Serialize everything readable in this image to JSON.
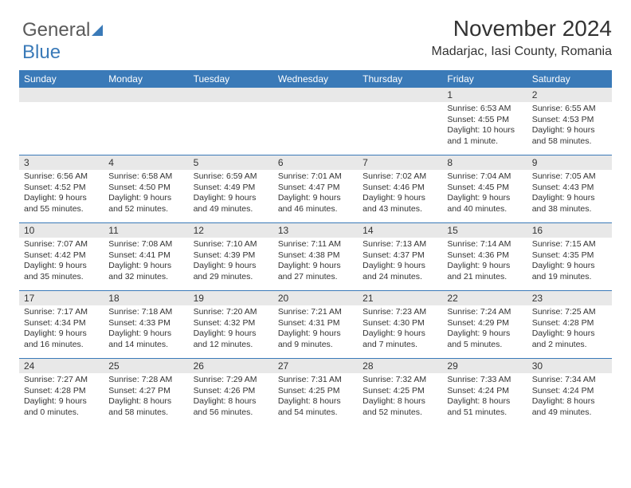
{
  "logo": {
    "text1": "General",
    "text2": "Blue"
  },
  "title": "November 2024",
  "location": "Madarjac, Iasi County, Romania",
  "dayNames": [
    "Sunday",
    "Monday",
    "Tuesday",
    "Wednesday",
    "Thursday",
    "Friday",
    "Saturday"
  ],
  "colors": {
    "headerBg": "#3a7ab8",
    "headerText": "#ffffff",
    "dateBarBg": "#e8e8e8",
    "border": "#3a7ab8",
    "body": "#333333",
    "background": "#ffffff"
  },
  "typography": {
    "titleFontSize": 28,
    "locationFontSize": 16,
    "dayHeaderFontSize": 12,
    "dateFontSize": 12,
    "bodyFontSize": 10.5
  },
  "layout": {
    "columns": 7,
    "rows": 5,
    "cellMinHeight": 84,
    "totalWidth": 744
  },
  "weeks": [
    [
      {
        "date": "",
        "sunrise": "",
        "sunset": "",
        "daylight": ""
      },
      {
        "date": "",
        "sunrise": "",
        "sunset": "",
        "daylight": ""
      },
      {
        "date": "",
        "sunrise": "",
        "sunset": "",
        "daylight": ""
      },
      {
        "date": "",
        "sunrise": "",
        "sunset": "",
        "daylight": ""
      },
      {
        "date": "",
        "sunrise": "",
        "sunset": "",
        "daylight": ""
      },
      {
        "date": "1",
        "sunrise": "Sunrise: 6:53 AM",
        "sunset": "Sunset: 4:55 PM",
        "daylight": "Daylight: 10 hours and 1 minute."
      },
      {
        "date": "2",
        "sunrise": "Sunrise: 6:55 AM",
        "sunset": "Sunset: 4:53 PM",
        "daylight": "Daylight: 9 hours and 58 minutes."
      }
    ],
    [
      {
        "date": "3",
        "sunrise": "Sunrise: 6:56 AM",
        "sunset": "Sunset: 4:52 PM",
        "daylight": "Daylight: 9 hours and 55 minutes."
      },
      {
        "date": "4",
        "sunrise": "Sunrise: 6:58 AM",
        "sunset": "Sunset: 4:50 PM",
        "daylight": "Daylight: 9 hours and 52 minutes."
      },
      {
        "date": "5",
        "sunrise": "Sunrise: 6:59 AM",
        "sunset": "Sunset: 4:49 PM",
        "daylight": "Daylight: 9 hours and 49 minutes."
      },
      {
        "date": "6",
        "sunrise": "Sunrise: 7:01 AM",
        "sunset": "Sunset: 4:47 PM",
        "daylight": "Daylight: 9 hours and 46 minutes."
      },
      {
        "date": "7",
        "sunrise": "Sunrise: 7:02 AM",
        "sunset": "Sunset: 4:46 PM",
        "daylight": "Daylight: 9 hours and 43 minutes."
      },
      {
        "date": "8",
        "sunrise": "Sunrise: 7:04 AM",
        "sunset": "Sunset: 4:45 PM",
        "daylight": "Daylight: 9 hours and 40 minutes."
      },
      {
        "date": "9",
        "sunrise": "Sunrise: 7:05 AM",
        "sunset": "Sunset: 4:43 PM",
        "daylight": "Daylight: 9 hours and 38 minutes."
      }
    ],
    [
      {
        "date": "10",
        "sunrise": "Sunrise: 7:07 AM",
        "sunset": "Sunset: 4:42 PM",
        "daylight": "Daylight: 9 hours and 35 minutes."
      },
      {
        "date": "11",
        "sunrise": "Sunrise: 7:08 AM",
        "sunset": "Sunset: 4:41 PM",
        "daylight": "Daylight: 9 hours and 32 minutes."
      },
      {
        "date": "12",
        "sunrise": "Sunrise: 7:10 AM",
        "sunset": "Sunset: 4:39 PM",
        "daylight": "Daylight: 9 hours and 29 minutes."
      },
      {
        "date": "13",
        "sunrise": "Sunrise: 7:11 AM",
        "sunset": "Sunset: 4:38 PM",
        "daylight": "Daylight: 9 hours and 27 minutes."
      },
      {
        "date": "14",
        "sunrise": "Sunrise: 7:13 AM",
        "sunset": "Sunset: 4:37 PM",
        "daylight": "Daylight: 9 hours and 24 minutes."
      },
      {
        "date": "15",
        "sunrise": "Sunrise: 7:14 AM",
        "sunset": "Sunset: 4:36 PM",
        "daylight": "Daylight: 9 hours and 21 minutes."
      },
      {
        "date": "16",
        "sunrise": "Sunrise: 7:15 AM",
        "sunset": "Sunset: 4:35 PM",
        "daylight": "Daylight: 9 hours and 19 minutes."
      }
    ],
    [
      {
        "date": "17",
        "sunrise": "Sunrise: 7:17 AM",
        "sunset": "Sunset: 4:34 PM",
        "daylight": "Daylight: 9 hours and 16 minutes."
      },
      {
        "date": "18",
        "sunrise": "Sunrise: 7:18 AM",
        "sunset": "Sunset: 4:33 PM",
        "daylight": "Daylight: 9 hours and 14 minutes."
      },
      {
        "date": "19",
        "sunrise": "Sunrise: 7:20 AM",
        "sunset": "Sunset: 4:32 PM",
        "daylight": "Daylight: 9 hours and 12 minutes."
      },
      {
        "date": "20",
        "sunrise": "Sunrise: 7:21 AM",
        "sunset": "Sunset: 4:31 PM",
        "daylight": "Daylight: 9 hours and 9 minutes."
      },
      {
        "date": "21",
        "sunrise": "Sunrise: 7:23 AM",
        "sunset": "Sunset: 4:30 PM",
        "daylight": "Daylight: 9 hours and 7 minutes."
      },
      {
        "date": "22",
        "sunrise": "Sunrise: 7:24 AM",
        "sunset": "Sunset: 4:29 PM",
        "daylight": "Daylight: 9 hours and 5 minutes."
      },
      {
        "date": "23",
        "sunrise": "Sunrise: 7:25 AM",
        "sunset": "Sunset: 4:28 PM",
        "daylight": "Daylight: 9 hours and 2 minutes."
      }
    ],
    [
      {
        "date": "24",
        "sunrise": "Sunrise: 7:27 AM",
        "sunset": "Sunset: 4:28 PM",
        "daylight": "Daylight: 9 hours and 0 minutes."
      },
      {
        "date": "25",
        "sunrise": "Sunrise: 7:28 AM",
        "sunset": "Sunset: 4:27 PM",
        "daylight": "Daylight: 8 hours and 58 minutes."
      },
      {
        "date": "26",
        "sunrise": "Sunrise: 7:29 AM",
        "sunset": "Sunset: 4:26 PM",
        "daylight": "Daylight: 8 hours and 56 minutes."
      },
      {
        "date": "27",
        "sunrise": "Sunrise: 7:31 AM",
        "sunset": "Sunset: 4:25 PM",
        "daylight": "Daylight: 8 hours and 54 minutes."
      },
      {
        "date": "28",
        "sunrise": "Sunrise: 7:32 AM",
        "sunset": "Sunset: 4:25 PM",
        "daylight": "Daylight: 8 hours and 52 minutes."
      },
      {
        "date": "29",
        "sunrise": "Sunrise: 7:33 AM",
        "sunset": "Sunset: 4:24 PM",
        "daylight": "Daylight: 8 hours and 51 minutes."
      },
      {
        "date": "30",
        "sunrise": "Sunrise: 7:34 AM",
        "sunset": "Sunset: 4:24 PM",
        "daylight": "Daylight: 8 hours and 49 minutes."
      }
    ]
  ]
}
